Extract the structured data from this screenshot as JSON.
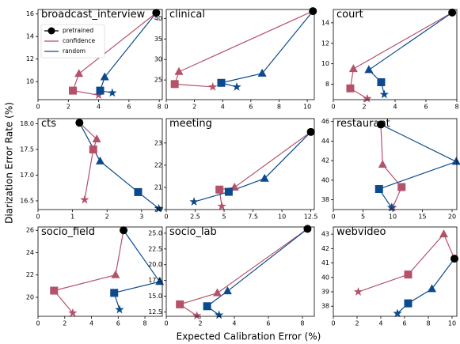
{
  "xlabel": "Expected Calibration Error (%)",
  "ylabel": "Diarization Error Rate (%)",
  "chart_data": [
    {
      "type": "line",
      "title": "broadcast_interview",
      "xlim": [
        0,
        8.2
      ],
      "ylim": [
        8.4,
        16.4
      ],
      "xticks": [
        0,
        2,
        4,
        6,
        8
      ],
      "yticks": [
        10,
        12,
        14,
        16
      ],
      "legend": {
        "loc": "upper left",
        "entries": [
          {
            "name": "pretrained",
            "color": "#000000"
          },
          {
            "name": "confidence",
            "color": "#b5526a"
          },
          {
            "name": "random",
            "color": "#0b4a8c"
          }
        ]
      },
      "series": [
        {
          "x": [
            7.8
          ],
          "y": [
            16.1
          ]
        },
        {
          "x": [
            2.7,
            2.3,
            4.0
          ],
          "y": [
            10.7,
            9.2,
            8.8
          ]
        },
        {
          "x": [
            4.4,
            4.1,
            4.9
          ],
          "y": [
            10.4,
            9.2,
            9.0
          ]
        }
      ]
    },
    {
      "type": "line",
      "title": "clinical",
      "xlim": [
        0,
        10.5
      ],
      "ylim": [
        20.2,
        42.2
      ],
      "xticks": [
        0,
        2,
        4,
        6,
        8,
        10
      ],
      "yticks": [
        25,
        30,
        35,
        40
      ],
      "series": [
        {
          "x": [
            10.4
          ],
          "y": [
            41.8
          ]
        },
        {
          "x": [
            0.9,
            0.6,
            3.3
          ],
          "y": [
            27,
            24,
            23.3
          ]
        },
        {
          "x": [
            6.8,
            3.9,
            5.0
          ],
          "y": [
            26.6,
            24.3,
            23.3
          ]
        }
      ]
    },
    {
      "type": "line",
      "title": "court",
      "xlim": [
        0,
        8
      ],
      "ylim": [
        6.5,
        15.3
      ],
      "xticks": [
        0,
        2,
        4,
        6,
        8
      ],
      "yticks": [
        8,
        10,
        12,
        14
      ],
      "series": [
        {
          "x": [
            7.7
          ],
          "y": [
            15
          ]
        },
        {
          "x": [
            1.3,
            1.1,
            2.2
          ],
          "y": [
            9.5,
            7.6,
            6.6
          ]
        },
        {
          "x": [
            2.3,
            3.1,
            3.3
          ],
          "y": [
            9.4,
            8.2,
            7.0
          ]
        }
      ]
    },
    {
      "type": "line",
      "title": "cts",
      "xlim": [
        0,
        3.6
      ],
      "ylim": [
        16.33,
        18.1
      ],
      "xticks": [
        0,
        1,
        2,
        3
      ],
      "yticks": [
        {
          "value": 16.5,
          "label": "16.5"
        },
        {
          "value": 17,
          "label": "17.0"
        },
        {
          "value": 17.5,
          "label": "17.5"
        },
        {
          "value": 18,
          "label": "18.0"
        }
      ],
      "series": [
        {
          "x": [
            1.2
          ],
          "y": [
            18.02
          ]
        },
        {
          "x": [
            1.7,
            1.6,
            1.35
          ],
          "y": [
            17.7,
            17.5,
            16.52
          ]
        },
        {
          "x": [
            1.8,
            2.9,
            3.5
          ],
          "y": [
            17.27,
            16.67,
            16.35
          ]
        }
      ]
    },
    {
      "type": "line",
      "title": "meeting",
      "xlim": [
        0,
        12.8
      ],
      "ylim": [
        20,
        24.1
      ],
      "xticks": [
        0,
        2.5,
        5,
        7.5,
        10,
        12.5
      ],
      "yticks": [
        20,
        21,
        22,
        23
      ],
      "series": [
        {
          "x": [
            12.5
          ],
          "y": [
            23.5
          ]
        },
        {
          "x": [
            5.9,
            4.6,
            4.8
          ],
          "y": [
            21.0,
            20.9,
            20.15
          ]
        },
        {
          "x": [
            8.5,
            5.4,
            2.4
          ],
          "y": [
            21.4,
            20.8,
            20.35
          ]
        }
      ]
    },
    {
      "type": "line",
      "title": "restaurant",
      "xlim": [
        0,
        20.8
      ],
      "ylim": [
        37,
        46.3
      ],
      "xticks": [
        0,
        5,
        10,
        15,
        20
      ],
      "yticks": [
        38,
        40,
        42,
        44,
        46
      ],
      "series": [
        {
          "x": [
            8
          ],
          "y": [
            45.7
          ]
        },
        {
          "x": [
            8.3,
            11.5,
            10
          ],
          "y": [
            41.6,
            39.3,
            37.2
          ]
        },
        {
          "x": [
            20.7,
            7.7,
            9.8
          ],
          "y": [
            41.9,
            39.1,
            37.2
          ]
        }
      ]
    },
    {
      "type": "line",
      "title": "socio_field",
      "xlim": [
        0,
        9.3
      ],
      "ylim": [
        18.3,
        26.3
      ],
      "xticks": [
        0,
        2,
        4,
        6,
        8
      ],
      "yticks": [
        20,
        22,
        24,
        26
      ],
      "series": [
        {
          "x": [
            6.4
          ],
          "y": [
            26
          ]
        },
        {
          "x": [
            5.8,
            1.2,
            2.6
          ],
          "y": [
            22,
            20.6,
            18.6
          ]
        },
        {
          "x": [
            9.1,
            5.7,
            6.1
          ],
          "y": [
            21.4,
            20.4,
            18.9
          ]
        }
      ]
    },
    {
      "type": "line",
      "title": "socio_lab",
      "xlim": [
        0,
        8.7
      ],
      "ylim": [
        11.8,
        26
      ],
      "xticks": [
        0,
        2,
        4,
        6,
        8
      ],
      "yticks": [
        {
          "value": 12.5,
          "label": "12.5"
        },
        {
          "value": 15,
          "label": "15.0"
        },
        {
          "value": 17.5,
          "label": "17.5"
        },
        {
          "value": 20,
          "label": "20.0"
        },
        {
          "value": 22.5,
          "label": "22.5"
        },
        {
          "value": 25,
          "label": "25.0"
        }
      ],
      "series": [
        {
          "x": [
            8.3
          ],
          "y": [
            25.7
          ]
        },
        {
          "x": [
            3.0,
            0.8,
            1.8
          ],
          "y": [
            15.5,
            13.7,
            11.9
          ]
        },
        {
          "x": [
            3.6,
            2.4,
            3.1
          ],
          "y": [
            15.8,
            13.4,
            12.0
          ]
        }
      ]
    },
    {
      "type": "line",
      "title": "webvideo",
      "xlim": [
        0,
        10.4
      ],
      "ylim": [
        37.3,
        43.5
      ],
      "xticks": [
        0,
        2,
        4,
        6,
        8,
        10
      ],
      "yticks": [
        38,
        39,
        40,
        41,
        42,
        43
      ],
      "series": [
        {
          "x": [
            10.2
          ],
          "y": [
            41.3
          ]
        },
        {
          "x": [
            9.3,
            6.3,
            2.1
          ],
          "y": [
            43,
            40.2,
            39
          ]
        },
        {
          "x": [
            8.3,
            6.3,
            5.4
          ],
          "y": [
            39.2,
            38.2,
            37.5
          ]
        }
      ]
    }
  ]
}
